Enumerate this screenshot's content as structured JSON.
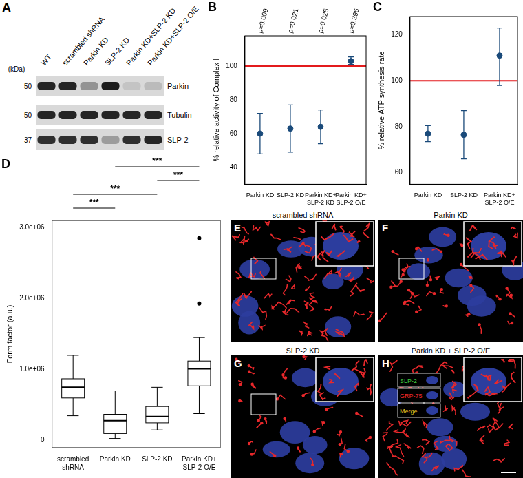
{
  "blot": {
    "panel": "A",
    "unit_label": "(kDa)",
    "lanes": [
      "WT",
      "scrambled shRNA",
      "Parkin KD",
      "SLP-2 KD",
      "Parkin KD+SLP-2 KD",
      "Parkin KD+SLP-2 O/E"
    ],
    "rows": [
      {
        "protein": "Parkin",
        "marker": 50,
        "intensities": [
          0.9,
          0.9,
          0.35,
          0.95,
          0.1,
          0.15
        ]
      },
      {
        "protein": "Tubulin",
        "marker": 50,
        "intensities": [
          0.9,
          0.9,
          0.9,
          0.9,
          0.9,
          0.9
        ]
      },
      {
        "protein": "SLP-2",
        "marker": 37,
        "intensities": [
          0.85,
          0.85,
          0.85,
          0.3,
          0.85,
          0.9
        ]
      }
    ]
  },
  "chart_data": [
    {
      "panel": "B",
      "type": "errorbar",
      "y_label": "% relative activity of Complex I",
      "categories": [
        "Parkin KD",
        "SLP-2 KD",
        "Parkin KD+SLP-2 KD",
        "Parkin KD+SLP-2 O/E"
      ],
      "values": [
        60,
        63,
        64,
        103
      ],
      "error_lower": [
        48,
        49,
        54,
        101
      ],
      "error_upper": [
        72,
        77,
        74,
        105.5
      ],
      "annotations": [
        "p=0.009",
        "p=0.021",
        "p=0.025",
        "p=0.396"
      ],
      "reference_line": 100,
      "color": "#1a4a7a",
      "ylim": [
        30,
        118
      ],
      "yticks": [
        40,
        60,
        80,
        100
      ],
      "grid": false
    },
    {
      "panel": "C",
      "type": "errorbar",
      "y_label": "% relative ATP synthesis rate",
      "categories": [
        "Parkin KD",
        "SLP-2 KD",
        "Parkin KD+SLP-2 O/E"
      ],
      "values": [
        77,
        76.5,
        111
      ],
      "error_lower": [
        73.5,
        66,
        98
      ],
      "error_upper": [
        80.5,
        87,
        123
      ],
      "reference_line": 100,
      "color": "#1a4a7a",
      "ylim": [
        55,
        128
      ],
      "yticks": [
        60,
        80,
        100,
        120
      ],
      "grid": false
    },
    {
      "panel": "D",
      "type": "box",
      "y_label": "Form factor (a.u.)",
      "categories": [
        "scrambled shRNA",
        "Parkin KD",
        "SLP-2 KD",
        "Parkin KD+SLP-2 O/E"
      ],
      "boxes": [
        {
          "min": 350000,
          "q1": 600000,
          "median": 750000,
          "q3": 870000,
          "max": 1200000,
          "outliers": []
        },
        {
          "min": 30000,
          "q1": 100000,
          "median": 280000,
          "q3": 370000,
          "max": 700000,
          "outliers": []
        },
        {
          "min": 150000,
          "q1": 250000,
          "median": 340000,
          "q3": 480000,
          "max": 750000,
          "outliers": []
        },
        {
          "min": 380000,
          "q1": 770000,
          "median": 1010000,
          "q3": 1120000,
          "max": 1450000,
          "outliers": [
            1930000,
            2850000
          ]
        }
      ],
      "comparisons": [
        {
          "from": "Parkin KD",
          "to": "Parkin KD+SLP-2 O/E",
          "label": "***"
        },
        {
          "from": "SLP-2 KD",
          "to": "Parkin KD+SLP-2 O/E",
          "label": "***"
        },
        {
          "from": "scrambled shRNA",
          "to": "SLP-2 KD",
          "label": "***"
        },
        {
          "from": "scrambled shRNA",
          "to": "Parkin KD",
          "label": "***"
        }
      ],
      "ylim": [
        -100000,
        3100000
      ],
      "yticks": [
        0,
        {
          "value": 1000000,
          "label": "1.0e+06"
        },
        {
          "value": 2000000,
          "label": "2.0e+06"
        },
        {
          "value": 3000000,
          "label": "3.0e+06"
        }
      ],
      "grid": false
    }
  ],
  "images": [
    {
      "panel": "E",
      "title": "scrambled shRNA"
    },
    {
      "panel": "F",
      "title": "Parkin KD"
    },
    {
      "panel": "G",
      "title": "SLP-2 KD"
    },
    {
      "panel": "H",
      "title": "Parkin KD + SLP-2 O/E",
      "inset_labels": [
        "SLP-2",
        "GRP-75",
        "Merge"
      ]
    }
  ]
}
